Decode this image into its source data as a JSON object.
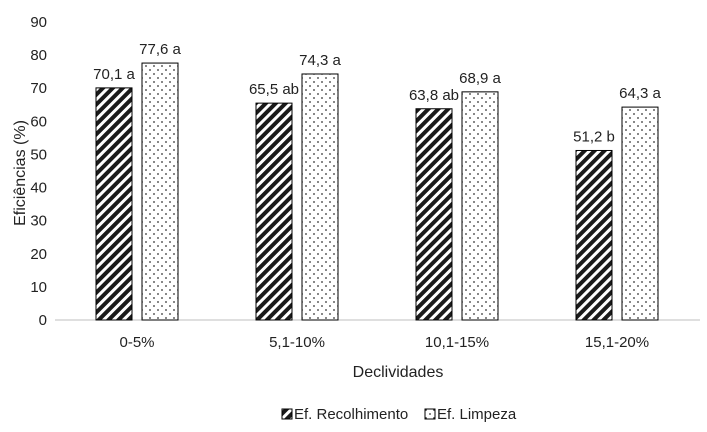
{
  "chart_data": {
    "type": "bar",
    "title": "",
    "xlabel": "Declividades",
    "ylabel": "Eficiências (%)",
    "ylim": [
      0,
      90
    ],
    "ytick_step": 10,
    "grid": false,
    "legend_position": "bottom",
    "categories": [
      "0-5%",
      "5,1-10%",
      "10,1-15%",
      "15,1-20%"
    ],
    "series": [
      {
        "name": "Ef. Recolhimento",
        "pattern": "diagonal-hatch",
        "values": [
          70.1,
          65.5,
          63.8,
          51.2
        ],
        "labels": [
          "70,1 a",
          "65,5 ab",
          "63,8 ab",
          "51,2 b"
        ]
      },
      {
        "name": "Ef. Limpeza",
        "pattern": "dotted",
        "values": [
          77.6,
          74.3,
          68.9,
          64.3
        ],
        "labels": [
          "77,6 a",
          "74,3 a",
          "68,9 a",
          "64,3 a"
        ]
      }
    ]
  }
}
